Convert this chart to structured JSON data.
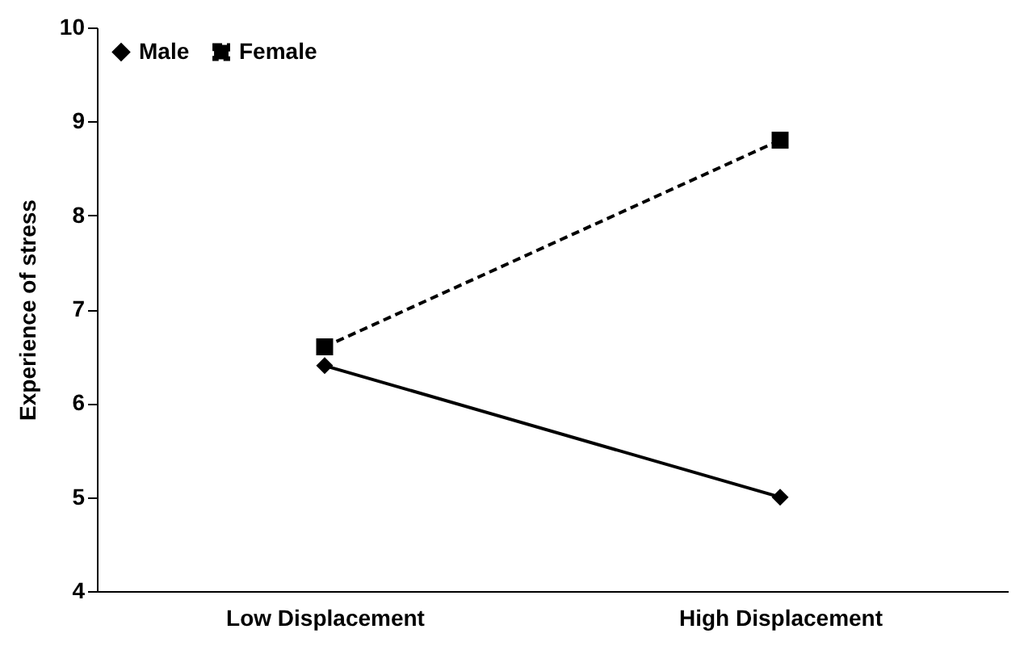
{
  "chart_data": {
    "type": "line",
    "ylabel": "Experience of stress",
    "categories": [
      "Low Displacement",
      "High Displacement"
    ],
    "series": [
      {
        "name": "Male",
        "color": "#000000",
        "values": [
          6.4,
          5.0
        ],
        "marker": "diamond",
        "line_style": "solid"
      },
      {
        "name": "Female",
        "color": "#000000",
        "values": [
          6.6,
          8.8
        ],
        "marker": "square",
        "line_style": "dashed"
      }
    ],
    "ylim": [
      4,
      10
    ],
    "yticks": [
      4,
      5,
      6,
      7,
      8,
      9,
      10
    ],
    "grid": false,
    "legend": "top left"
  }
}
